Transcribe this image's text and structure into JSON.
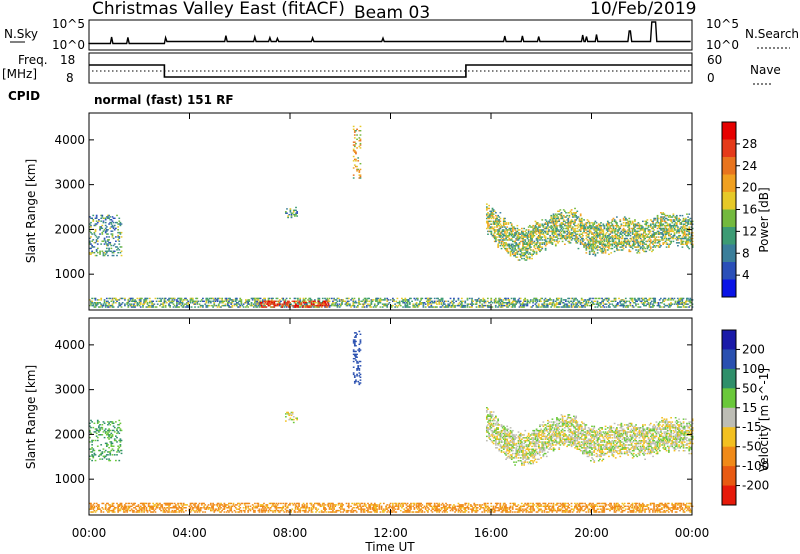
{
  "header": {
    "station": "Christmas Valley East (fitACF)",
    "beam": "Beam 03",
    "date": "10/Feb/2019"
  },
  "params": {
    "nsky_label": "N.Sky",
    "nsky_ticks": [
      "10^5",
      "10^0"
    ],
    "nsearch_label": "N.Search",
    "nsearch_ticks": [
      "10^5",
      "10^0"
    ],
    "freq_label": "Freq.",
    "freq_unit": "[MHz]",
    "freq_ticks": [
      "18",
      "8"
    ],
    "nave_label": "Nave",
    "nave_ticks": [
      "60",
      "0"
    ],
    "cpid_label": "CPID",
    "cpid_text": "normal (fast) 151 RF"
  },
  "colors": {
    "power": [
      "#0a14e6",
      "#2a4fb8",
      "#3a7e9a",
      "#3c9b74",
      "#73b93e",
      "#e6c928",
      "#f0a020",
      "#e8741e",
      "#e53a1a",
      "#e60000"
    ],
    "velocity": [
      "#1a1aa8",
      "#2a50b0",
      "#2f8f6a",
      "#6ac83a",
      "#bdbdb5",
      "#f3c020",
      "#f08a18",
      "#e85a12",
      "#e61a0a"
    ],
    "trace": "#000000"
  },
  "chart_data": [
    {
      "type": "heatmap",
      "name": "power",
      "xlabel": "",
      "ylabel": "Slant Range [km]",
      "y_ticks": [
        "1000",
        "2000",
        "3000",
        "4000"
      ],
      "ylim": [
        200,
        4600
      ],
      "x_range_hours": [
        0,
        24
      ],
      "colorbar": {
        "label": "Power [dB]",
        "ticks": [
          "4",
          "8",
          "12",
          "16",
          "20",
          "24",
          "28"
        ],
        "range": [
          0,
          32
        ]
      },
      "echo_regions": [
        {
          "t0": 0.0,
          "t1": 24.0,
          "r0": 250,
          "r1": 450,
          "level": 0.35
        },
        {
          "t0": 6.8,
          "t1": 9.5,
          "r0": 250,
          "r1": 400,
          "level": 0.85
        },
        {
          "t0": 0.0,
          "t1": 1.3,
          "r0": 1400,
          "r1": 2300,
          "level": 0.3
        },
        {
          "t0": 7.8,
          "t1": 8.3,
          "r0": 2250,
          "r1": 2500,
          "level": 0.35
        },
        {
          "t0": 10.5,
          "t1": 10.8,
          "r0": 3100,
          "r1": 4300,
          "level": 0.6
        },
        {
          "t0": 15.8,
          "t1": 24.0,
          "r0": 1300,
          "r1": 2600,
          "level": 0.45
        }
      ]
    },
    {
      "type": "heatmap",
      "name": "velocity",
      "xlabel": "Time UT",
      "ylabel": "Slant Range [km]",
      "x_ticks": [
        "00:00",
        "04:00",
        "08:00",
        "12:00",
        "16:00",
        "20:00",
        "00:00"
      ],
      "y_ticks": [
        "1000",
        "2000",
        "3000",
        "4000"
      ],
      "ylim": [
        200,
        4600
      ],
      "x_range_hours": [
        0,
        24
      ],
      "colorbar": {
        "label": "Velocity [m s^-1]",
        "ticks": [
          "200",
          "100",
          "50",
          "15",
          "-15",
          "-50",
          "-100",
          "-200"
        ]
      },
      "echo_regions": [
        {
          "t0": 0.0,
          "t1": 24.0,
          "r0": 250,
          "r1": 450,
          "value": -40
        },
        {
          "t0": 0.0,
          "t1": 1.3,
          "r0": 1400,
          "r1": 2300,
          "value": 30
        },
        {
          "t0": 7.8,
          "t1": 8.3,
          "r0": 2250,
          "r1": 2500,
          "value": 0
        },
        {
          "t0": 10.5,
          "t1": 10.8,
          "r0": 3100,
          "r1": 4300,
          "value": 120
        },
        {
          "t0": 15.8,
          "t1": 24.0,
          "r0": 1300,
          "r1": 2600,
          "value": 0
        }
      ]
    }
  ],
  "freq_schedule": [
    {
      "t0": 0,
      "t1": 3,
      "mhz": 14
    },
    {
      "t0": 3,
      "t1": 15,
      "mhz": 10
    },
    {
      "t0": 15,
      "t1": 24,
      "mhz": 14
    }
  ]
}
